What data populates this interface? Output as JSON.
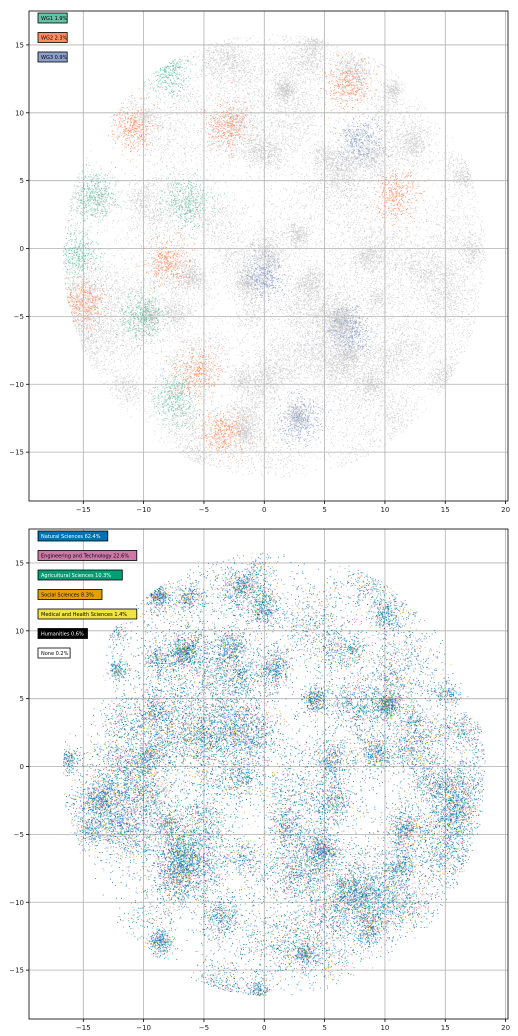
{
  "chart_data": [
    {
      "type": "scatter",
      "title": "",
      "xlabel": "",
      "ylabel": "",
      "xlim": [
        -19.5,
        20.2
      ],
      "ylim": [
        -18.6,
        17.5
      ],
      "x_ticks": [
        -15,
        -10,
        -5,
        0,
        5,
        10,
        15,
        20
      ],
      "y_ticks": [
        -15,
        -10,
        -5,
        0,
        5,
        10,
        15
      ],
      "grid": true,
      "legend_placement": "top-left",
      "background_color": "#c8c8c8",
      "series": [
        {
          "name": "WG1 1.9%",
          "color": "#66c2a5"
        },
        {
          "name": "WG2 2.3%",
          "color": "#fc8d62"
        },
        {
          "name": "WG3 0.9%",
          "color": "#8da0cb"
        }
      ],
      "highlight_regions": [
        {
          "series": "WG1 1.9%",
          "x": -6.5,
          "y": 3.5
        },
        {
          "series": "WG1 1.9%",
          "x": -8,
          "y": 13
        },
        {
          "series": "WG1 1.9%",
          "x": -15.5,
          "y": -0.5
        },
        {
          "series": "WG1 1.9%",
          "x": -7.5,
          "y": -11
        },
        {
          "series": "WG1 1.9%",
          "x": -10,
          "y": -5
        },
        {
          "series": "WG1 1.9%",
          "x": -14,
          "y": 4
        },
        {
          "series": "WG2 2.3%",
          "x": -11,
          "y": 9
        },
        {
          "series": "WG2 2.3%",
          "x": -3,
          "y": 9
        },
        {
          "series": "WG2 2.3%",
          "x": 11,
          "y": 4
        },
        {
          "series": "WG2 2.3%",
          "x": -5.5,
          "y": -9
        },
        {
          "series": "WG2 2.3%",
          "x": -3.5,
          "y": -13.5
        },
        {
          "series": "WG2 2.3%",
          "x": -15,
          "y": -4
        },
        {
          "series": "WG2 2.3%",
          "x": -8,
          "y": -1
        },
        {
          "series": "WG2 2.3%",
          "x": 7,
          "y": 12
        },
        {
          "series": "WG3 0.9%",
          "x": 3,
          "y": -12.5
        },
        {
          "series": "WG3 0.9%",
          "x": 7,
          "y": -6
        },
        {
          "series": "WG3 0.9%",
          "x": 8,
          "y": 8
        },
        {
          "series": "WG3 0.9%",
          "x": 0,
          "y": -2
        }
      ]
    },
    {
      "type": "scatter",
      "title": "",
      "xlabel": "",
      "ylabel": "",
      "xlim": [
        -19.5,
        20.2
      ],
      "ylim": [
        -18.6,
        17.5
      ],
      "x_ticks": [
        -15,
        -10,
        -5,
        0,
        5,
        10,
        15,
        20
      ],
      "y_ticks": [
        -15,
        -10,
        -5,
        0,
        5,
        10,
        15
      ],
      "grid": true,
      "legend_placement": "top-left",
      "series": [
        {
          "name": "Natural Sciences 62.4%",
          "color": "#0072b2",
          "share": 62.4
        },
        {
          "name": "Engineering and Technology 22.6%",
          "color": "#cc79a7",
          "share": 22.6
        },
        {
          "name": "Agricultural Sciences 10.3%",
          "color": "#009e73",
          "share": 10.3
        },
        {
          "name": "Social Sciences 8.3%",
          "color": "#e69f00",
          "share": 8.3
        },
        {
          "name": "Medical and Health Sciences 1.4%",
          "color": "#f0e442",
          "share": 1.4
        },
        {
          "name": "Humanities 0.6%",
          "color": "#000000",
          "share": 0.6
        },
        {
          "name": "None 0.2%",
          "color": "#ffffff",
          "share": 0.2
        }
      ]
    }
  ]
}
